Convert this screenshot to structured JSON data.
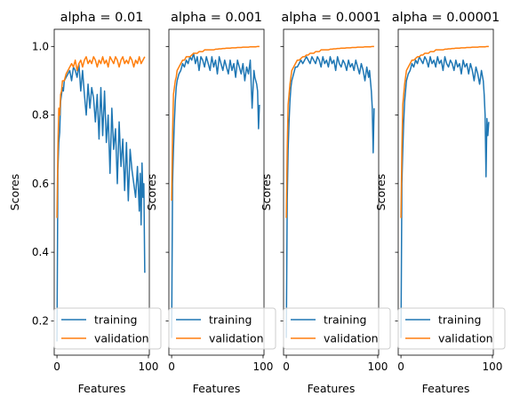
{
  "chart_data": [
    {
      "type": "line",
      "title": "alpha = 0.01",
      "xlabel": "Features",
      "ylabel": "Scores",
      "xlim": [
        -3,
        101
      ],
      "ylim": [
        0.1,
        1.05
      ],
      "xticks": [
        0,
        100
      ],
      "yticks": [
        0.2,
        0.4,
        0.6,
        0.8,
        1.0
      ],
      "ytick_labels": [
        "0.2",
        "0.4",
        "0.6",
        "0.8",
        "1.0"
      ],
      "show_yticklabels": true,
      "legend": "lower-right",
      "series": [
        {
          "name": "training",
          "color": "#1f77b4",
          "x": [
            0,
            1,
            2,
            3,
            4,
            5,
            6,
            7,
            8,
            10,
            12,
            14,
            16,
            18,
            20,
            22,
            24,
            26,
            28,
            30,
            32,
            34,
            36,
            38,
            40,
            42,
            44,
            46,
            48,
            50,
            52,
            54,
            56,
            58,
            60,
            62,
            64,
            66,
            68,
            70,
            72,
            74,
            76,
            78,
            80,
            82,
            84,
            86,
            88,
            90,
            91,
            92,
            93,
            94,
            95,
            96
          ],
          "y": [
            0.14,
            0.64,
            0.72,
            0.75,
            0.84,
            0.86,
            0.88,
            0.87,
            0.9,
            0.91,
            0.92,
            0.93,
            0.9,
            0.94,
            0.93,
            0.91,
            0.95,
            0.87,
            0.93,
            0.86,
            0.8,
            0.89,
            0.82,
            0.88,
            0.85,
            0.78,
            0.86,
            0.73,
            0.88,
            0.74,
            0.87,
            0.72,
            0.8,
            0.63,
            0.82,
            0.7,
            0.76,
            0.6,
            0.78,
            0.65,
            0.73,
            0.58,
            0.72,
            0.55,
            0.7,
            0.64,
            0.6,
            0.56,
            0.65,
            0.52,
            0.63,
            0.48,
            0.66,
            0.56,
            0.6,
            0.34
          ]
        },
        {
          "name": "validation",
          "color": "#ff7f0e",
          "x": [
            0,
            1,
            2,
            3,
            4,
            5,
            6,
            8,
            10,
            12,
            14,
            16,
            18,
            20,
            22,
            24,
            26,
            28,
            30,
            32,
            34,
            36,
            38,
            40,
            42,
            44,
            46,
            48,
            50,
            52,
            54,
            56,
            58,
            60,
            62,
            64,
            66,
            68,
            70,
            72,
            74,
            76,
            78,
            80,
            82,
            84,
            86,
            88,
            90,
            92,
            94,
            96
          ],
          "y": [
            0.5,
            0.7,
            0.82,
            0.8,
            0.86,
            0.87,
            0.9,
            0.9,
            0.92,
            0.93,
            0.94,
            0.95,
            0.94,
            0.96,
            0.93,
            0.95,
            0.96,
            0.94,
            0.96,
            0.97,
            0.95,
            0.96,
            0.95,
            0.97,
            0.96,
            0.94,
            0.96,
            0.95,
            0.97,
            0.95,
            0.96,
            0.94,
            0.97,
            0.96,
            0.95,
            0.97,
            0.96,
            0.94,
            0.96,
            0.97,
            0.95,
            0.96,
            0.95,
            0.97,
            0.96,
            0.94,
            0.96,
            0.95,
            0.97,
            0.95,
            0.96,
            0.97
          ]
        }
      ]
    },
    {
      "type": "line",
      "title": "alpha = 0.001",
      "xlabel": "Features",
      "ylabel": "Scores",
      "xlim": [
        -3,
        101
      ],
      "ylim": [
        0.1,
        1.05
      ],
      "xticks": [
        0,
        100
      ],
      "yticks": [
        0.2,
        0.4,
        0.6,
        0.8,
        1.0
      ],
      "show_yticklabels": false,
      "legend": "lower-right",
      "series": [
        {
          "name": "training",
          "color": "#1f77b4",
          "x": [
            0,
            1,
            2,
            3,
            4,
            5,
            6,
            8,
            10,
            12,
            14,
            16,
            18,
            20,
            22,
            24,
            26,
            28,
            30,
            32,
            34,
            36,
            38,
            40,
            42,
            44,
            46,
            48,
            50,
            52,
            54,
            56,
            58,
            60,
            62,
            64,
            66,
            68,
            70,
            72,
            74,
            76,
            78,
            80,
            82,
            84,
            86,
            88,
            90,
            91,
            92,
            93,
            94,
            95,
            96
          ],
          "y": [
            0.15,
            0.6,
            0.7,
            0.78,
            0.84,
            0.88,
            0.9,
            0.92,
            0.93,
            0.95,
            0.94,
            0.96,
            0.95,
            0.97,
            0.96,
            0.98,
            0.95,
            0.97,
            0.93,
            0.97,
            0.96,
            0.94,
            0.97,
            0.95,
            0.93,
            0.97,
            0.94,
            0.96,
            0.92,
            0.97,
            0.95,
            0.93,
            0.96,
            0.94,
            0.92,
            0.96,
            0.93,
            0.95,
            0.91,
            0.96,
            0.94,
            0.92,
            0.95,
            0.9,
            0.94,
            0.92,
            0.96,
            0.82,
            0.93,
            0.91,
            0.9,
            0.89,
            0.87,
            0.76,
            0.83
          ]
        },
        {
          "name": "validation",
          "color": "#ff7f0e",
          "x": [
            0,
            1,
            2,
            3,
            4,
            5,
            6,
            8,
            10,
            12,
            14,
            16,
            18,
            20,
            22,
            24,
            26,
            28,
            30,
            32,
            34,
            36,
            38,
            40,
            42,
            44,
            46,
            48,
            50,
            52,
            54,
            56,
            58,
            60,
            62,
            64,
            66,
            68,
            70,
            72,
            74,
            76,
            78,
            80,
            82,
            84,
            86,
            88,
            90,
            92,
            94,
            96
          ],
          "y": [
            0.55,
            0.74,
            0.86,
            0.88,
            0.9,
            0.91,
            0.93,
            0.94,
            0.95,
            0.96,
            0.96,
            0.97,
            0.97,
            0.97,
            0.975,
            0.98,
            0.98,
            0.98,
            0.985,
            0.985,
            0.985,
            0.99,
            0.99,
            0.99,
            0.99,
            0.99,
            0.99,
            0.992,
            0.992,
            0.993,
            0.993,
            0.994,
            0.994,
            0.995,
            0.995,
            0.995,
            0.996,
            0.996,
            0.996,
            0.997,
            0.997,
            0.997,
            0.998,
            0.998,
            0.998,
            0.998,
            0.999,
            0.999,
            0.999,
            0.999,
            1.0,
            1.0
          ]
        }
      ]
    },
    {
      "type": "line",
      "title": "alpha = 0.0001",
      "xlabel": "Features",
      "ylabel": "Scores",
      "xlim": [
        -3,
        101
      ],
      "ylim": [
        0.1,
        1.05
      ],
      "xticks": [
        0,
        100
      ],
      "yticks": [
        0.2,
        0.4,
        0.6,
        0.8,
        1.0
      ],
      "show_yticklabels": false,
      "legend": "lower-right",
      "series": [
        {
          "name": "training",
          "color": "#1f77b4",
          "x": [
            0,
            1,
            2,
            3,
            4,
            5,
            6,
            8,
            10,
            12,
            14,
            16,
            18,
            20,
            22,
            24,
            26,
            28,
            30,
            32,
            34,
            36,
            38,
            40,
            42,
            44,
            46,
            48,
            50,
            52,
            54,
            56,
            58,
            60,
            62,
            64,
            66,
            68,
            70,
            72,
            74,
            76,
            78,
            80,
            82,
            84,
            86,
            88,
            90,
            91,
            92,
            93,
            94,
            95,
            96
          ],
          "y": [
            0.15,
            0.55,
            0.7,
            0.78,
            0.84,
            0.88,
            0.9,
            0.92,
            0.94,
            0.94,
            0.95,
            0.96,
            0.95,
            0.96,
            0.97,
            0.96,
            0.95,
            0.97,
            0.96,
            0.95,
            0.97,
            0.96,
            0.94,
            0.97,
            0.95,
            0.96,
            0.94,
            0.97,
            0.95,
            0.96,
            0.93,
            0.97,
            0.95,
            0.94,
            0.96,
            0.95,
            0.93,
            0.96,
            0.94,
            0.95,
            0.93,
            0.96,
            0.94,
            0.92,
            0.95,
            0.93,
            0.9,
            0.94,
            0.91,
            0.93,
            0.9,
            0.87,
            0.82,
            0.69,
            0.82
          ]
        },
        {
          "name": "validation",
          "color": "#ff7f0e",
          "x": [
            0,
            1,
            2,
            3,
            4,
            5,
            6,
            8,
            10,
            12,
            14,
            16,
            18,
            20,
            22,
            24,
            26,
            28,
            30,
            32,
            34,
            36,
            38,
            40,
            42,
            44,
            46,
            48,
            50,
            52,
            54,
            56,
            58,
            60,
            62,
            64,
            66,
            68,
            70,
            72,
            74,
            76,
            78,
            80,
            82,
            84,
            86,
            88,
            90,
            92,
            94,
            96
          ],
          "y": [
            0.5,
            0.7,
            0.83,
            0.86,
            0.89,
            0.91,
            0.93,
            0.94,
            0.95,
            0.96,
            0.96,
            0.965,
            0.97,
            0.97,
            0.975,
            0.975,
            0.98,
            0.98,
            0.98,
            0.985,
            0.985,
            0.985,
            0.99,
            0.99,
            0.99,
            0.99,
            0.99,
            0.992,
            0.992,
            0.993,
            0.993,
            0.994,
            0.994,
            0.995,
            0.995,
            0.995,
            0.996,
            0.996,
            0.996,
            0.997,
            0.997,
            0.997,
            0.998,
            0.998,
            0.998,
            0.998,
            0.999,
            0.999,
            0.999,
            0.999,
            1.0,
            1.0
          ]
        }
      ]
    },
    {
      "type": "line",
      "title": "alpha = 0.00001",
      "xlabel": "Features",
      "ylabel": "Scores",
      "xlim": [
        -3,
        101
      ],
      "ylim": [
        0.1,
        1.05
      ],
      "xticks": [
        0,
        100
      ],
      "yticks": [
        0.2,
        0.4,
        0.6,
        0.8,
        1.0
      ],
      "show_yticklabels": false,
      "legend": "lower-right",
      "series": [
        {
          "name": "training",
          "color": "#1f77b4",
          "x": [
            0,
            1,
            2,
            3,
            4,
            5,
            6,
            8,
            10,
            12,
            14,
            16,
            18,
            20,
            22,
            24,
            26,
            28,
            30,
            32,
            34,
            36,
            38,
            40,
            42,
            44,
            46,
            48,
            50,
            52,
            54,
            56,
            58,
            60,
            62,
            64,
            66,
            68,
            70,
            72,
            74,
            76,
            78,
            80,
            82,
            84,
            86,
            88,
            90,
            91,
            92,
            93,
            94,
            95,
            96
          ],
          "y": [
            0.15,
            0.6,
            0.7,
            0.78,
            0.84,
            0.87,
            0.9,
            0.92,
            0.93,
            0.95,
            0.94,
            0.96,
            0.95,
            0.97,
            0.96,
            0.95,
            0.97,
            0.96,
            0.94,
            0.97,
            0.95,
            0.96,
            0.94,
            0.97,
            0.95,
            0.96,
            0.93,
            0.97,
            0.95,
            0.94,
            0.96,
            0.95,
            0.93,
            0.96,
            0.94,
            0.95,
            0.92,
            0.96,
            0.94,
            0.95,
            0.92,
            0.95,
            0.93,
            0.9,
            0.94,
            0.92,
            0.89,
            0.93,
            0.9,
            0.86,
            0.8,
            0.62,
            0.79,
            0.74,
            0.78
          ]
        },
        {
          "name": "validation",
          "color": "#ff7f0e",
          "x": [
            0,
            1,
            2,
            3,
            4,
            5,
            6,
            8,
            10,
            12,
            14,
            16,
            18,
            20,
            22,
            24,
            26,
            28,
            30,
            32,
            34,
            36,
            38,
            40,
            42,
            44,
            46,
            48,
            50,
            52,
            54,
            56,
            58,
            60,
            62,
            64,
            66,
            68,
            70,
            72,
            74,
            76,
            78,
            80,
            82,
            84,
            86,
            88,
            90,
            92,
            94,
            96
          ],
          "y": [
            0.5,
            0.7,
            0.83,
            0.86,
            0.89,
            0.91,
            0.93,
            0.94,
            0.95,
            0.96,
            0.96,
            0.965,
            0.97,
            0.97,
            0.975,
            0.975,
            0.98,
            0.98,
            0.98,
            0.985,
            0.985,
            0.985,
            0.99,
            0.99,
            0.99,
            0.99,
            0.99,
            0.992,
            0.992,
            0.993,
            0.993,
            0.994,
            0.994,
            0.995,
            0.995,
            0.995,
            0.996,
            0.996,
            0.996,
            0.997,
            0.997,
            0.997,
            0.998,
            0.998,
            0.998,
            0.998,
            0.999,
            0.999,
            0.999,
            0.999,
            1.0,
            1.0
          ]
        }
      ]
    }
  ]
}
